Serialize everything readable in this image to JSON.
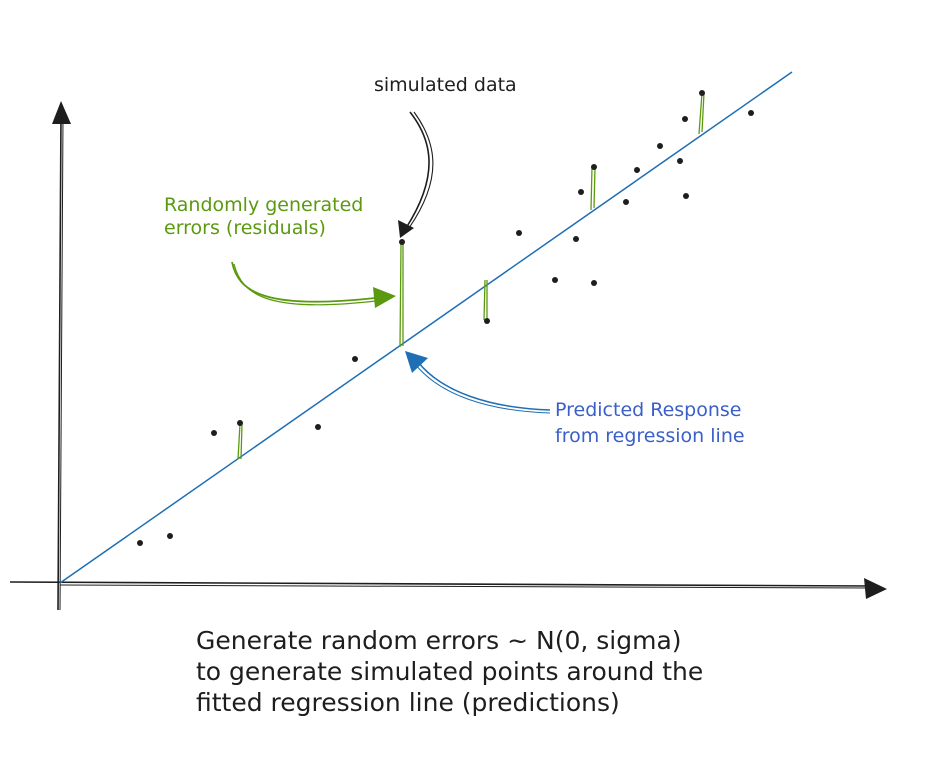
{
  "labels": {
    "simulated": "simulated data",
    "random_errors": [
      "Randomly generated",
      "errors (residuals)"
    ],
    "predicted": [
      "Predicted Response",
      "from regression line"
    ],
    "caption": [
      "Generate random errors ~ N(0, sigma)",
      "to generate simulated points around the",
      "fitted regression line (predictions)"
    ]
  },
  "colors": {
    "ink": "#1e1e1e",
    "regression_line": "#1f6fb5",
    "residual": "#5b9a10",
    "residual_label": "#5b9a10",
    "predicted_arrow": "#1f6fb5",
    "predicted_label": "#3a5fc9"
  },
  "icons": [
    "arrow-up-icon",
    "arrow-right-icon"
  ]
}
